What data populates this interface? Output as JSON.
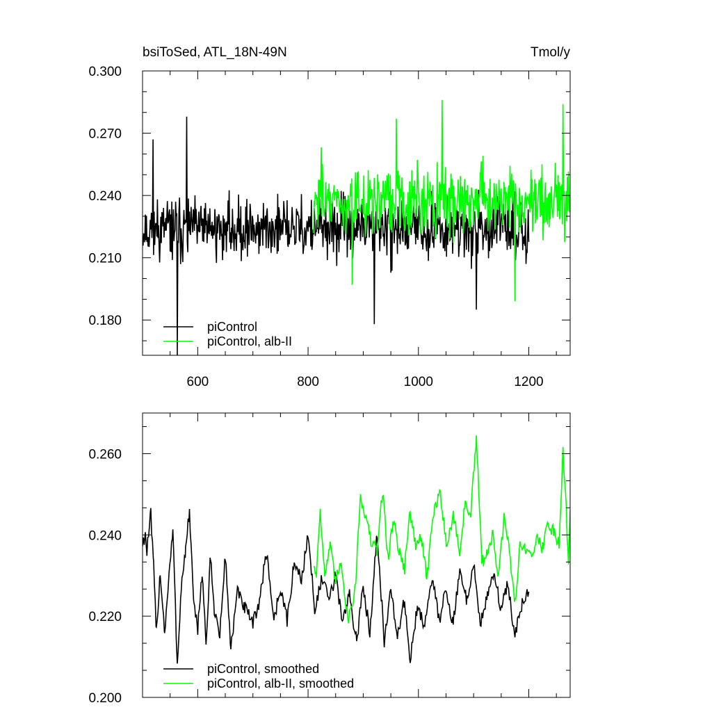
{
  "chart_data": [
    {
      "type": "line",
      "title_left": "bsiToSed, ATL_18N-49N",
      "title_right": "Tmol/y",
      "xlim": [
        500,
        1275
      ],
      "ylim": [
        0.163,
        0.3
      ],
      "xticks": [
        600,
        800,
        1000,
        1200
      ],
      "xtick_labels": [
        "600",
        "800",
        "1000",
        "1200"
      ],
      "yticks": [
        0.18,
        0.21,
        0.24,
        0.27,
        0.3
      ],
      "ytick_labels": [
        "0.180",
        "0.210",
        "0.240",
        "0.270",
        "0.300"
      ],
      "legend_position": "bottom-left",
      "colors": {
        "black": "#000000",
        "green": "#00ff00"
      },
      "series": [
        {
          "name": "piControl",
          "color": "#000000",
          "x_start": 500,
          "x_end": 1200,
          "mean": 0.224,
          "amplitude": 0.018,
          "extremes": [
            [
              519,
              0.267
            ],
            [
              563,
              0.163
            ],
            [
              580,
              0.278
            ],
            [
              920,
              0.178
            ],
            [
              1105,
              0.185
            ]
          ]
        },
        {
          "name": "piControl, alb-II",
          "color": "#00ff00",
          "x_start": 810,
          "x_end": 1275,
          "mean": 0.238,
          "amplitude": 0.02,
          "extremes": [
            [
              960,
              0.277
            ],
            [
              1043,
              0.286
            ],
            [
              1262,
              0.284
            ],
            [
              1175,
              0.189
            ],
            [
              880,
              0.197
            ]
          ]
        }
      ]
    },
    {
      "type": "line",
      "xlim": [
        500,
        1275
      ],
      "ylim": [
        0.2,
        0.27
      ],
      "xticks": [
        600,
        800,
        1000,
        1200
      ],
      "yticks": [
        0.2,
        0.22,
        0.24,
        0.26
      ],
      "ytick_labels": [
        "0.200",
        "0.220",
        "0.240",
        "0.260"
      ],
      "legend_position": "bottom-left",
      "series": [
        {
          "name": "piControl, smoothed",
          "color": "#000000",
          "x_start": 500,
          "x_end": 1200,
          "values_sparse": [
            [
              500,
              0.238
            ],
            [
              505,
              0.24
            ],
            [
              508,
              0.236
            ],
            [
              515,
              0.245
            ],
            [
              520,
              0.232
            ],
            [
              525,
              0.216
            ],
            [
              532,
              0.231
            ],
            [
              540,
              0.216
            ],
            [
              548,
              0.23
            ],
            [
              555,
              0.241
            ],
            [
              563,
              0.208
            ],
            [
              570,
              0.227
            ],
            [
              578,
              0.236
            ],
            [
              585,
              0.246
            ],
            [
              593,
              0.222
            ],
            [
              600,
              0.217
            ],
            [
              608,
              0.231
            ],
            [
              615,
              0.213
            ],
            [
              623,
              0.234
            ],
            [
              630,
              0.222
            ],
            [
              640,
              0.215
            ],
            [
              650,
              0.235
            ],
            [
              660,
              0.212
            ],
            [
              672,
              0.226
            ],
            [
              685,
              0.222
            ],
            [
              700,
              0.218
            ],
            [
              712,
              0.224
            ],
            [
              725,
              0.236
            ],
            [
              738,
              0.219
            ],
            [
              750,
              0.227
            ],
            [
              762,
              0.219
            ],
            [
              775,
              0.233
            ],
            [
              788,
              0.229
            ],
            [
              800,
              0.24
            ],
            [
              812,
              0.222
            ],
            [
              825,
              0.229
            ],
            [
              838,
              0.224
            ],
            [
              850,
              0.23
            ],
            [
              862,
              0.219
            ],
            [
              875,
              0.225
            ],
            [
              888,
              0.214
            ],
            [
              900,
              0.227
            ],
            [
              912,
              0.216
            ],
            [
              925,
              0.241
            ],
            [
              938,
              0.214
            ],
            [
              950,
              0.226
            ],
            [
              962,
              0.215
            ],
            [
              975,
              0.224
            ],
            [
              985,
              0.209
            ],
            [
              998,
              0.222
            ],
            [
              1010,
              0.218
            ],
            [
              1025,
              0.229
            ],
            [
              1038,
              0.219
            ],
            [
              1050,
              0.227
            ],
            [
              1063,
              0.218
            ],
            [
              1075,
              0.231
            ],
            [
              1088,
              0.224
            ],
            [
              1100,
              0.233
            ],
            [
              1112,
              0.218
            ],
            [
              1125,
              0.225
            ],
            [
              1138,
              0.23
            ],
            [
              1150,
              0.222
            ],
            [
              1162,
              0.228
            ],
            [
              1175,
              0.215
            ],
            [
              1188,
              0.223
            ],
            [
              1200,
              0.226
            ]
          ]
        },
        {
          "name": "piControl, alb-II, smoothed",
          "color": "#00ff00",
          "x_start": 810,
          "x_end": 1275,
          "values_sparse": [
            [
              810,
              0.233
            ],
            [
              815,
              0.23
            ],
            [
              822,
              0.247
            ],
            [
              830,
              0.23
            ],
            [
              840,
              0.237
            ],
            [
              850,
              0.228
            ],
            [
              860,
              0.234
            ],
            [
              872,
              0.219
            ],
            [
              885,
              0.226
            ],
            [
              895,
              0.25
            ],
            [
              905,
              0.244
            ],
            [
              915,
              0.238
            ],
            [
              925,
              0.236
            ],
            [
              935,
              0.251
            ],
            [
              945,
              0.234
            ],
            [
              955,
              0.244
            ],
            [
              965,
              0.236
            ],
            [
              975,
              0.232
            ],
            [
              985,
              0.246
            ],
            [
              995,
              0.237
            ],
            [
              1005,
              0.24
            ],
            [
              1015,
              0.229
            ],
            [
              1028,
              0.246
            ],
            [
              1040,
              0.25
            ],
            [
              1052,
              0.237
            ],
            [
              1063,
              0.245
            ],
            [
              1075,
              0.236
            ],
            [
              1085,
              0.248
            ],
            [
              1095,
              0.245
            ],
            [
              1105,
              0.264
            ],
            [
              1115,
              0.233
            ],
            [
              1125,
              0.236
            ],
            [
              1135,
              0.24
            ],
            [
              1145,
              0.229
            ],
            [
              1155,
              0.244
            ],
            [
              1165,
              0.236
            ],
            [
              1175,
              0.223
            ],
            [
              1185,
              0.239
            ],
            [
              1195,
              0.235
            ],
            [
              1205,
              0.236
            ],
            [
              1215,
              0.239
            ],
            [
              1225,
              0.237
            ],
            [
              1235,
              0.243
            ],
            [
              1245,
              0.241
            ],
            [
              1255,
              0.238
            ],
            [
              1262,
              0.261
            ],
            [
              1268,
              0.246
            ],
            [
              1272,
              0.233
            ],
            [
              1275,
              0.246
            ]
          ]
        }
      ]
    }
  ]
}
